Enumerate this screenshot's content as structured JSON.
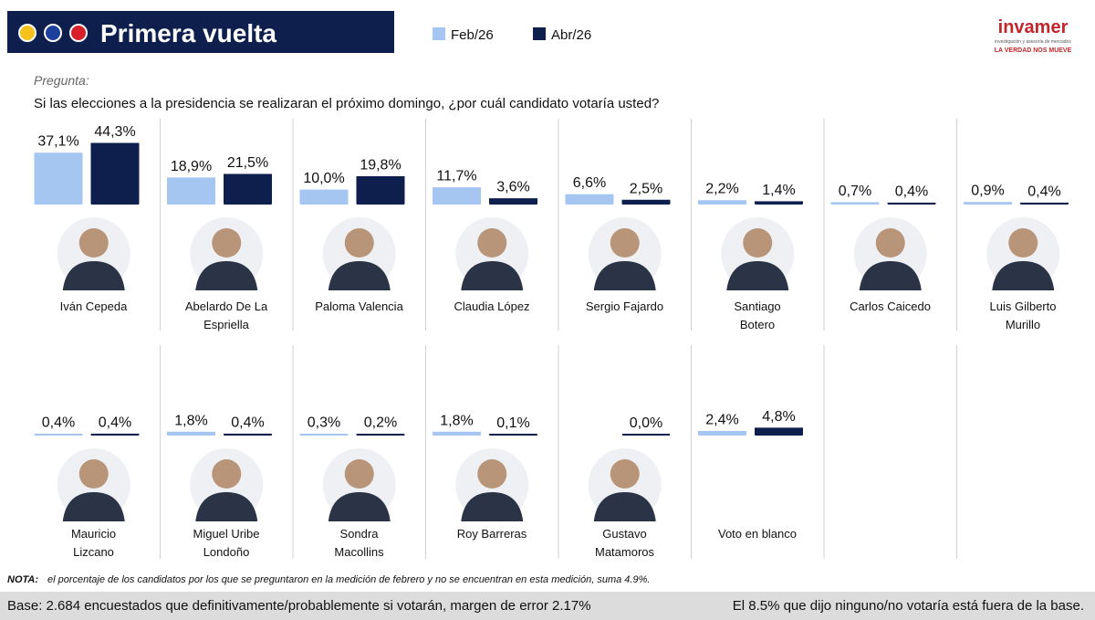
{
  "header": {
    "title": "Primera vuelta",
    "logo": "invamer",
    "logo_tagline": "investigación y asesoría de mercados",
    "logo_slogan": "LA VERDAD NOS MUEVE"
  },
  "question_label": "Pregunta:",
  "question": "Si las elecciones a la presidencia se realizaran el próximo domingo, ¿por cuál candidato votaría usted?",
  "chart_data": {
    "type": "bar",
    "categories": [
      "Iván Cepeda",
      "Abelardo De La\nEspriella",
      "Paloma Valencia",
      "Claudia López",
      "Sergio Fajardo",
      "Santiago\nBotero",
      "Carlos Caicedo",
      "Luis Gilberto\nMurillo",
      "Mauricio\nLizcano",
      "Miguel Uribe\nLondoño",
      "Sondra\nMacollins",
      "Roy Barreras",
      "Gustavo\nMatamoros",
      "Voto en blanco"
    ],
    "series": [
      {
        "name": "Feb/26",
        "color": "#a6c6f2",
        "values": [
          37.1,
          18.9,
          10.0,
          11.7,
          6.6,
          2.2,
          0.7,
          0.9,
          0.4,
          1.8,
          0.3,
          1.8,
          null,
          2.4
        ],
        "value_labels": [
          "37,1%",
          "18,9%",
          "10,0%",
          "11,7%",
          "6,6%",
          "2,2%",
          "0,7%",
          "0,9%",
          "0,4%",
          "1,8%",
          "0,3%",
          "1,8%",
          null,
          "2,4%"
        ]
      },
      {
        "name": "Abr/26",
        "color": "#0e1f4d",
        "values": [
          44.3,
          21.5,
          19.8,
          3.6,
          2.5,
          1.4,
          0.4,
          0.4,
          0.4,
          0.4,
          0.2,
          0.1,
          0.0,
          4.8
        ],
        "value_labels": [
          "44,3%",
          "21,5%",
          "19,8%",
          "3,6%",
          "2,5%",
          "1,4%",
          "0,4%",
          "0,4%",
          "0,4%",
          "0,4%",
          "0,2%",
          "0,1%",
          "0,0%",
          "4,8%"
        ]
      }
    ]
  },
  "note": {
    "label": "NOTA:",
    "text": "el porcentaje de los candidatos por los que se preguntaron en la medición de febrero y no se encuentran en esta medición, suma 4.9%."
  },
  "footer": {
    "left": "Base: 2.684 encuestados que definitivamente/probablemente si votarán, margen de error 2.17%",
    "right": "El 8.5% que dijo ninguno/no votaría está fuera de la base."
  }
}
